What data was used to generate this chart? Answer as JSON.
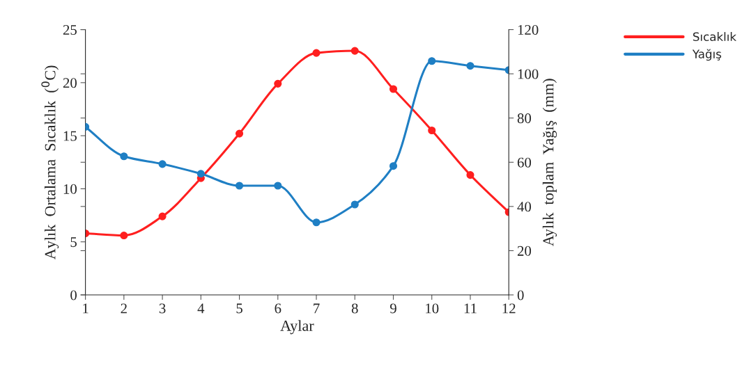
{
  "chart_data": {
    "type": "line",
    "xlabel": "Aylar",
    "ylabel": "Aylık  Ortalama  Sıcaklık  ($^{0}$C)",
    "y2label": "Aylık  toplam  Yağış  (mm)",
    "x": [
      1,
      2,
      3,
      4,
      5,
      6,
      7,
      8,
      9,
      10,
      11,
      12
    ],
    "xlim": [
      1,
      12
    ],
    "xticks": [
      1,
      2,
      3,
      4,
      5,
      6,
      7,
      8,
      9,
      10,
      11,
      12
    ],
    "ylim": [
      0,
      25
    ],
    "yticks": [
      0,
      5,
      10,
      15,
      20,
      25
    ],
    "y2lim": [
      0,
      120
    ],
    "y2ticks": [
      0,
      20,
      40,
      60,
      80,
      100,
      120
    ],
    "marker": "circle",
    "line_style": "solid",
    "grid": false,
    "legend": "top right",
    "series": [
      {
        "name": "Sıcaklık",
        "color": "#ff1f1f",
        "values": [
          5.8,
          5.6,
          7.4,
          11.0,
          15.2,
          19.9,
          22.8,
          23.0,
          19.4,
          15.5,
          11.3,
          7.8
        ]
      },
      {
        "name": "Yağış",
        "color": "#1f7fc4",
        "axis": "y2",
        "values": [
          76,
          62.7,
          59.2,
          54.8,
          49.4,
          49.4,
          32.8,
          40.9,
          58.3,
          105.8,
          103.6,
          101.7
        ]
      }
    ]
  }
}
